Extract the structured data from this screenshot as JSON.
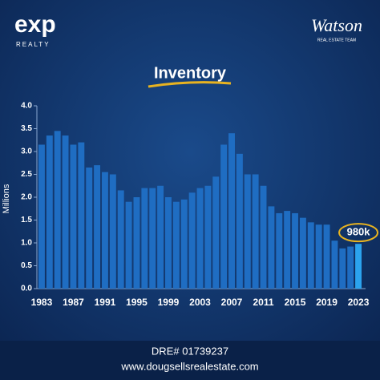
{
  "brand": {
    "logo": "exp",
    "logo_sub": "REALTY",
    "team": "Watson",
    "team_sub": "REAL ESTATE TEAM"
  },
  "chart_data": {
    "type": "bar",
    "title": "Inventory",
    "ylabel": "Millions",
    "categories": [
      "1983",
      null,
      null,
      null,
      "1987",
      null,
      null,
      null,
      "1991",
      null,
      null,
      null,
      "1995",
      null,
      null,
      null,
      "1999",
      null,
      null,
      null,
      "2003",
      null,
      null,
      null,
      "2007",
      null,
      null,
      null,
      "2011",
      null,
      null,
      null,
      "2015",
      null,
      null,
      null,
      "2019",
      null,
      null,
      null,
      "2023"
    ],
    "values": [
      3.15,
      3.35,
      3.45,
      3.35,
      3.15,
      3.2,
      2.65,
      2.7,
      2.55,
      2.5,
      2.15,
      1.9,
      2.0,
      2.2,
      2.2,
      2.25,
      2.0,
      1.9,
      1.95,
      2.1,
      2.2,
      2.25,
      2.45,
      3.15,
      3.4,
      2.95,
      2.5,
      2.5,
      2.25,
      1.8,
      1.65,
      1.7,
      1.65,
      1.55,
      1.45,
      1.4,
      1.4,
      1.05,
      0.88,
      0.92,
      0.98
    ],
    "value_labels": [
      null,
      null,
      null,
      null,
      null,
      null,
      null,
      null,
      null,
      null,
      null,
      null,
      null,
      null,
      null,
      null,
      null,
      null,
      null,
      null,
      null,
      null,
      null,
      null,
      null,
      null,
      null,
      null,
      null,
      null,
      null,
      null,
      null,
      null,
      null,
      null,
      null,
      null,
      null,
      null,
      "980k"
    ],
    "color": "#1f6dc2",
    "highlight_color": "#2ba3ee",
    "ylim": [
      0,
      4
    ],
    "yticks": [
      {
        "value": 0,
        "label": "0.0"
      },
      0.5,
      {
        "value": 1,
        "label": "1.0"
      },
      1.5,
      {
        "value": 2,
        "label": "2.0"
      },
      2.5,
      {
        "value": 3,
        "label": "3.0"
      },
      3.5,
      {
        "value": 4,
        "label": "4.0"
      }
    ]
  },
  "footer": {
    "dre": "DRE# 01739237",
    "website": "www.dougsellsrealestate.com"
  }
}
